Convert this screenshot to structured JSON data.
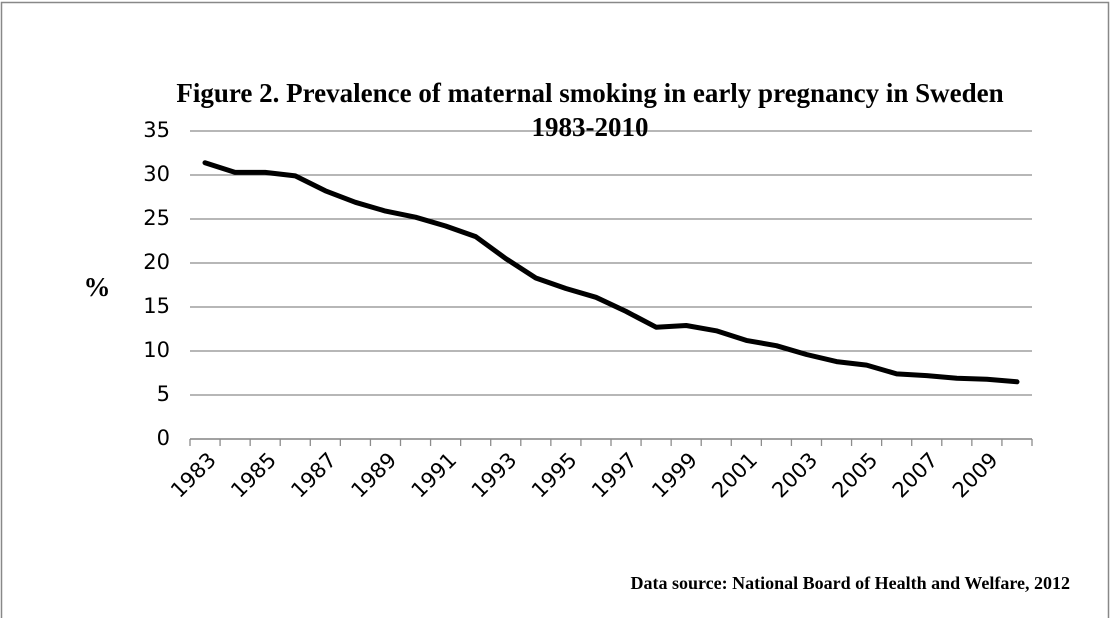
{
  "chart_data": {
    "type": "line",
    "title": "Figure 2. Prevalence of maternal smoking in early pregnancy in Sweden 1983-2010",
    "y_label": "%",
    "source": "Data source: National Board of Health and Welfare, 2012",
    "categories": [
      "1983",
      null,
      "1985",
      null,
      "1987",
      null,
      "1989",
      null,
      "1991",
      null,
      "1993",
      null,
      "1995",
      null,
      "1997",
      null,
      "1999",
      null,
      "2001",
      null,
      "2003",
      null,
      "2005",
      null,
      "2007",
      null,
      "2009",
      null
    ],
    "series": [
      {
        "name": "Prevalence",
        "color": "#000000",
        "values": [
          31.4,
          30.3,
          30.3,
          29.9,
          28.2,
          26.9,
          25.9,
          25.2,
          24.2,
          23.0,
          20.5,
          18.3,
          17.1,
          16.1,
          14.5,
          12.7,
          12.9,
          12.3,
          11.2,
          10.6,
          9.6,
          8.8,
          8.4,
          7.4,
          7.2,
          6.9,
          6.8,
          6.5
        ]
      }
    ],
    "ylim": [
      0,
      35
    ],
    "yticks": [
      0,
      5,
      10,
      15,
      20,
      25,
      30,
      35
    ],
    "grid": true
  }
}
